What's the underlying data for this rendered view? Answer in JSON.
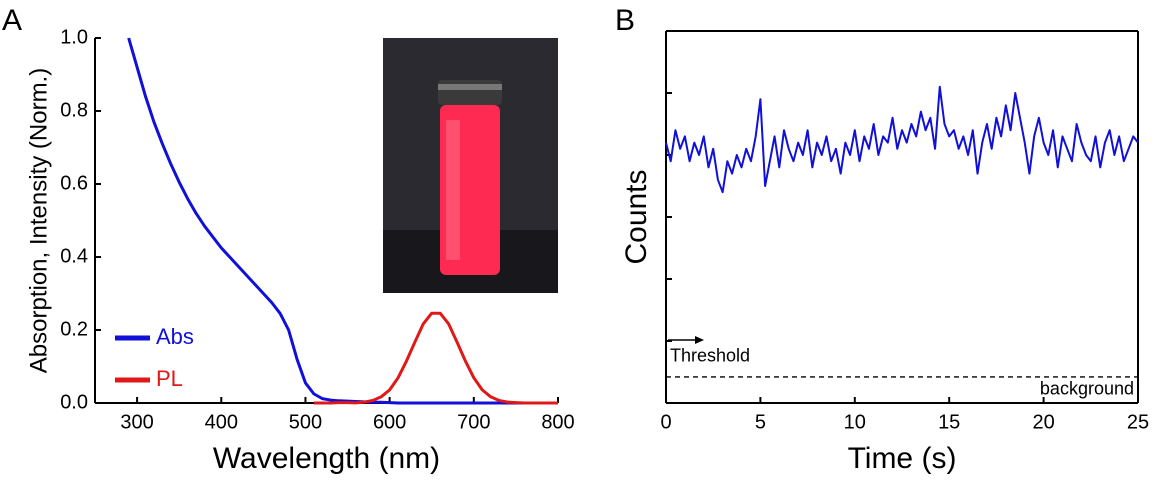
{
  "chart_data": [
    {
      "type": "line",
      "panel_label": "A",
      "xlabel": "Wavelength (nm)",
      "ylabel": "Absorption, Intensity (Norm.)",
      "xlim": [
        250,
        800
      ],
      "ylim": [
        0,
        1
      ],
      "xticks": [
        300,
        400,
        500,
        600,
        700,
        800
      ],
      "yticks": [
        {
          "value": 0,
          "label": "0.0"
        },
        0.2,
        0.4,
        0.6,
        0.8,
        {
          "value": 1,
          "label": "1.0"
        }
      ],
      "legend": "lower left",
      "x": [
        290,
        300,
        310,
        320,
        330,
        340,
        350,
        360,
        370,
        380,
        390,
        400,
        410,
        420,
        430,
        440,
        450,
        460,
        470,
        480,
        490,
        500,
        510,
        520,
        530,
        540,
        550,
        560,
        570,
        580,
        590,
        600,
        610,
        620,
        630,
        640,
        650,
        660,
        670,
        680,
        690,
        700,
        710,
        720,
        730,
        740,
        750,
        760,
        770,
        780,
        790,
        800
      ],
      "series": [
        {
          "name": "Abs",
          "color": "#1010d8",
          "values": [
            1.0,
            0.92,
            0.84,
            0.77,
            0.71,
            0.655,
            0.605,
            0.56,
            0.52,
            0.485,
            0.455,
            0.425,
            0.4,
            0.375,
            0.35,
            0.325,
            0.3,
            0.275,
            0.245,
            0.2,
            0.12,
            0.055,
            0.025,
            0.012,
            0.008,
            0.006,
            0.005,
            0.004,
            0.003,
            0.002,
            0.002,
            0.001,
            0,
            0,
            0,
            0,
            0,
            0,
            0,
            0,
            0,
            0,
            0,
            0,
            0,
            0,
            0,
            0,
            0,
            0,
            0,
            0
          ]
        },
        {
          "name": "PL",
          "color": "#e01818",
          "values": [
            null,
            null,
            null,
            null,
            null,
            null,
            null,
            null,
            null,
            null,
            null,
            null,
            null,
            null,
            null,
            null,
            null,
            null,
            null,
            null,
            null,
            null,
            0,
            0,
            0,
            0.001,
            0.001,
            0.0002,
            0.0025,
            0.007,
            0.017,
            0.036,
            0.069,
            0.115,
            0.167,
            0.217,
            0.246,
            0.246,
            0.217,
            0.167,
            0.115,
            0.069,
            0.036,
            0.017,
            0.007,
            0.0025,
            0.001,
            0,
            0,
            0,
            0,
            0
          ]
        }
      ]
    },
    {
      "type": "line",
      "panel_label": "B",
      "xlabel": "Time (s)",
      "ylabel": "Counts",
      "xlim": [
        0,
        25
      ],
      "ylim": [
        0,
        6
      ],
      "xticks": [
        0,
        5,
        10,
        15,
        20,
        25
      ],
      "yticks": [
        1,
        2,
        3,
        4,
        5
      ],
      "ytick_labels": false,
      "background_level": 0.42,
      "annotations": [
        "Threshold",
        "background"
      ],
      "x": [
        0,
        0.25,
        0.5,
        0.75,
        1,
        1.25,
        1.5,
        1.75,
        2,
        2.25,
        2.5,
        2.75,
        3,
        3.25,
        3.5,
        3.75,
        4,
        4.25,
        4.5,
        4.75,
        5,
        5.25,
        5.5,
        5.75,
        6,
        6.25,
        6.5,
        6.75,
        7,
        7.25,
        7.5,
        7.75,
        8,
        8.25,
        8.5,
        8.75,
        9,
        9.25,
        9.5,
        9.75,
        10,
        10.25,
        10.5,
        10.75,
        11,
        11.25,
        11.5,
        11.75,
        12,
        12.25,
        12.5,
        12.75,
        13,
        13.25,
        13.5,
        13.75,
        14,
        14.25,
        14.5,
        14.75,
        15,
        15.25,
        15.5,
        15.75,
        16,
        16.25,
        16.5,
        16.75,
        17,
        17.25,
        17.5,
        17.75,
        18,
        18.25,
        18.5,
        18.75,
        19,
        19.25,
        19.5,
        19.75,
        20,
        20.25,
        20.5,
        20.75,
        21,
        21.25,
        21.5,
        21.75,
        22,
        22.25,
        22.5,
        22.75,
        23,
        23.25,
        23.5,
        23.75,
        24,
        24.25,
        24.5,
        24.75,
        25
      ],
      "series": [
        {
          "name": "Counts",
          "color": "#1010d8",
          "values": [
            4.2,
            3.9,
            4.4,
            4.1,
            4.3,
            3.9,
            4.2,
            4.0,
            4.3,
            3.8,
            4.1,
            3.6,
            3.4,
            3.9,
            3.7,
            4.0,
            3.8,
            4.1,
            3.9,
            4.3,
            4.9,
            3.5,
            3.9,
            4.3,
            3.8,
            4.4,
            4.1,
            3.9,
            4.2,
            4.0,
            4.4,
            3.8,
            4.2,
            4.0,
            4.3,
            3.9,
            4.1,
            3.7,
            4.2,
            4.0,
            4.4,
            3.9,
            4.3,
            4.1,
            4.5,
            4.0,
            4.3,
            4.2,
            4.6,
            4.1,
            4.4,
            4.2,
            4.5,
            4.3,
            4.7,
            4.4,
            4.6,
            4.1,
            5.1,
            4.5,
            4.3,
            4.4,
            4.1,
            4.3,
            4.0,
            4.4,
            3.7,
            4.2,
            4.5,
            4.1,
            4.6,
            4.3,
            4.8,
            4.4,
            5.0,
            4.6,
            4.2,
            3.7,
            4.3,
            4.6,
            4.2,
            4.0,
            4.4,
            3.8,
            4.3,
            4.1,
            3.9,
            4.5,
            4.2,
            4.0,
            3.9,
            4.3,
            3.8,
            4.2,
            4.4,
            4.0,
            4.3,
            3.9,
            4.1,
            4.3,
            4.2
          ]
        }
      ]
    }
  ]
}
